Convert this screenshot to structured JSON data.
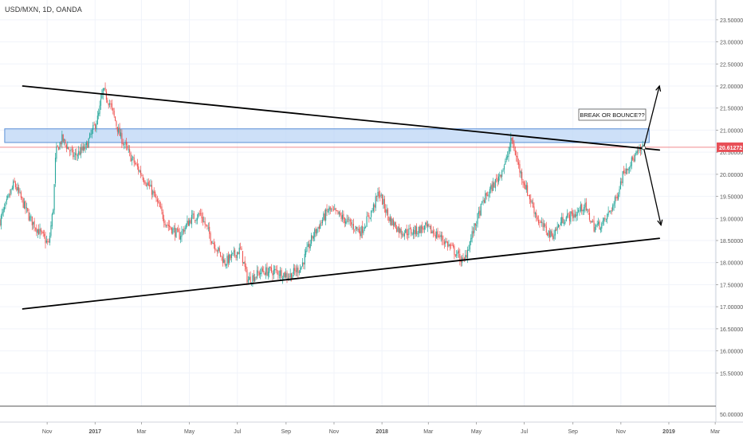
{
  "header": {
    "symbol_label": "USD/MXN, 1D, OANDA"
  },
  "colors": {
    "up": "#26a69a",
    "down": "#ef5350",
    "wick": "#555555",
    "trendline": "#000000",
    "zone_fill": "#bcd6f5",
    "zone_stroke": "#5b8fd6",
    "last_price_bg": "#e84f57",
    "last_price_line": "#f08a8f",
    "grid": "#f0f3fa",
    "axis_text": "#555555"
  },
  "annotation": {
    "text": "BREAK OR BOUNCE??"
  },
  "last_price_label": "20.61272",
  "lower_pane_label": "50.00000",
  "chart_data": {
    "type": "candlestick",
    "title": "",
    "symbol": "USD/MXN",
    "interval": "1D",
    "source": "OANDA",
    "ylim": [
      15.0,
      23.75
    ],
    "y_ticks": [
      "23.50000",
      "23.00000",
      "22.50000",
      "22.00000",
      "21.50000",
      "21.00000",
      "20.50000",
      "20.00000",
      "19.50000",
      "19.00000",
      "18.50000",
      "18.00000",
      "17.50000",
      "17.00000",
      "16.50000",
      "16.00000",
      "15.50000"
    ],
    "x_tick_labels": [
      "Nov",
      "2017",
      "Mar",
      "May",
      "Jul",
      "Sep",
      "Nov",
      "2018",
      "Mar",
      "May",
      "Jul",
      "Sep",
      "Nov",
      "2019",
      "Mar"
    ],
    "last_price": 20.61272,
    "price_path": [
      [
        "2016-09-01",
        18.9
      ],
      [
        "2016-09-20",
        19.8
      ],
      [
        "2016-10-10",
        19.0
      ],
      [
        "2016-10-26",
        18.6
      ],
      [
        "2016-11-03",
        18.4
      ],
      [
        "2016-11-09",
        19.3
      ],
      [
        "2016-11-12",
        20.5
      ],
      [
        "2016-11-20",
        20.8
      ],
      [
        "2016-12-05",
        20.4
      ],
      [
        "2016-12-20",
        20.6
      ],
      [
        "2017-01-05",
        21.3
      ],
      [
        "2017-01-11",
        21.9
      ],
      [
        "2017-01-20",
        21.6
      ],
      [
        "2017-02-01",
        20.9
      ],
      [
        "2017-02-15",
        20.4
      ],
      [
        "2017-03-01",
        20.0
      ],
      [
        "2017-03-15",
        19.6
      ],
      [
        "2017-04-01",
        18.9
      ],
      [
        "2017-04-18",
        18.6
      ],
      [
        "2017-05-03",
        19.0
      ],
      [
        "2017-05-15",
        19.1
      ],
      [
        "2017-05-30",
        18.5
      ],
      [
        "2017-06-15",
        18.0
      ],
      [
        "2017-07-05",
        18.3
      ],
      [
        "2017-07-14",
        17.6
      ],
      [
        "2017-08-01",
        17.8
      ],
      [
        "2017-08-20",
        17.8
      ],
      [
        "2017-09-05",
        17.7
      ],
      [
        "2017-09-20",
        17.9
      ],
      [
        "2017-10-05",
        18.6
      ],
      [
        "2017-10-25",
        19.2
      ],
      [
        "2017-11-05",
        19.1
      ],
      [
        "2017-11-20",
        18.9
      ],
      [
        "2017-12-05",
        18.7
      ],
      [
        "2017-12-20",
        19.2
      ],
      [
        "2017-12-28",
        19.6
      ],
      [
        "2018-01-10",
        19.0
      ],
      [
        "2018-01-25",
        18.7
      ],
      [
        "2018-02-10",
        18.7
      ],
      [
        "2018-02-25",
        18.8
      ],
      [
        "2018-03-15",
        18.6
      ],
      [
        "2018-04-01",
        18.3
      ],
      [
        "2018-04-15",
        18.0
      ],
      [
        "2018-04-25",
        18.6
      ],
      [
        "2018-05-10",
        19.4
      ],
      [
        "2018-05-28",
        19.9
      ],
      [
        "2018-06-08",
        20.3
      ],
      [
        "2018-06-15",
        20.8
      ],
      [
        "2018-06-25",
        20.1
      ],
      [
        "2018-07-05",
        19.6
      ],
      [
        "2018-07-20",
        18.9
      ],
      [
        "2018-08-05",
        18.6
      ],
      [
        "2018-08-20",
        19.0
      ],
      [
        "2018-09-05",
        19.1
      ],
      [
        "2018-09-15",
        19.3
      ],
      [
        "2018-09-28",
        18.8
      ],
      [
        "2018-10-10",
        18.9
      ],
      [
        "2018-10-25",
        19.4
      ],
      [
        "2018-11-05",
        20.1
      ],
      [
        "2018-11-15",
        20.3
      ],
      [
        "2018-11-23",
        20.5
      ],
      [
        "2018-11-30",
        20.61
      ]
    ],
    "drawings": {
      "descending_trendline": [
        [
          "2016-10-01",
          22.0
        ],
        [
          "2018-12-20",
          20.55
        ]
      ],
      "ascending_trendline": [
        [
          "2016-10-01",
          16.95
        ],
        [
          "2018-12-20",
          18.55
        ]
      ],
      "resistance_zone": {
        "x_range": [
          "2016-09-08",
          "2018-12-07"
        ],
        "y_range": [
          20.72,
          21.03
        ]
      },
      "breakout_arrow": [
        [
          "2018-11-30",
          20.6
        ],
        [
          "2018-12-20",
          22.0
        ]
      ],
      "breakdown_arrow": [
        [
          "2018-11-30",
          20.6
        ],
        [
          "2018-12-22",
          18.85
        ]
      ]
    }
  }
}
